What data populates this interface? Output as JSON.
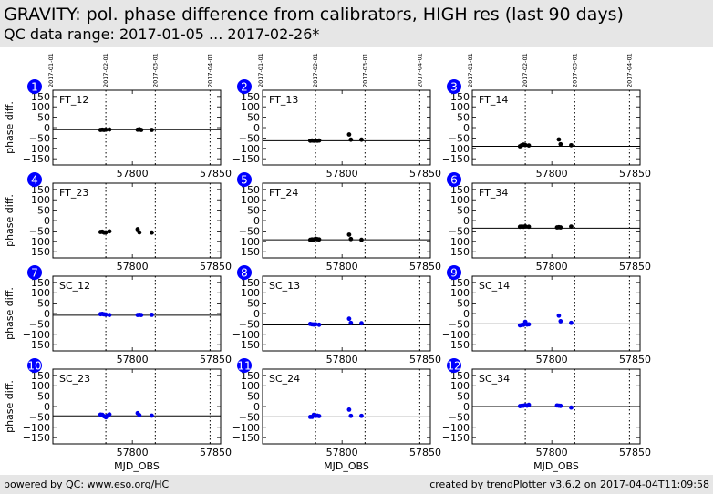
{
  "header": {
    "title": "GRAVITY: pol. phase difference from calibrators, HIGH res (last 90 days)",
    "subtitle": "QC data range: 2017-01-05 ... 2017-02-26*"
  },
  "footer": {
    "left": "powered by QC: www.eso.org/HC",
    "right": "created by trendPlotter v3.6.2 on 2017-04-04T11:09:58"
  },
  "colors": {
    "ft_points": "#000000",
    "sc_points": "#0000ee",
    "badge": "#0000ff",
    "band": "#e6e6e6"
  },
  "chart_data": {
    "type": "scatter",
    "xlabel": "MJD_OBS",
    "ylabel": "phase diff.",
    "xlim": [
      57755,
      57850
    ],
    "ylim": [
      -180,
      180
    ],
    "xticks": [
      57800,
      57850
    ],
    "yticks": [
      150,
      100,
      50,
      0,
      -50,
      -100,
      -150
    ],
    "date_markers": [
      {
        "label": "2017-01-01",
        "x": 57754
      },
      {
        "label": "2017-02-01",
        "x": 57785
      },
      {
        "label": "2017-03-01",
        "x": 57813
      },
      {
        "label": "2017-04-01",
        "x": 57844
      }
    ],
    "panels": [
      {
        "number": "1",
        "name": "FT_12",
        "ref": -10,
        "points": [
          [
            57782,
            -11
          ],
          [
            57783,
            -10
          ],
          [
            57784,
            -11
          ],
          [
            57785,
            -10
          ],
          [
            57787,
            -9
          ],
          [
            57803,
            -10
          ],
          [
            57804,
            -8
          ],
          [
            57805,
            -11
          ],
          [
            57811,
            -11
          ]
        ]
      },
      {
        "number": "2",
        "name": "FT_13",
        "ref": -63,
        "points": [
          [
            57782,
            -63
          ],
          [
            57783,
            -62
          ],
          [
            57784,
            -63
          ],
          [
            57785,
            -62
          ],
          [
            57786,
            -63
          ],
          [
            57787,
            -62
          ],
          [
            57804,
            -33
          ],
          [
            57805,
            -58
          ],
          [
            57811,
            -58
          ]
        ]
      },
      {
        "number": "3",
        "name": "FT_14",
        "ref": -90,
        "points": [
          [
            57782,
            -90
          ],
          [
            57783,
            -85
          ],
          [
            57784,
            -82
          ],
          [
            57785,
            -84
          ],
          [
            57787,
            -86
          ],
          [
            57804,
            -57
          ],
          [
            57805,
            -80
          ],
          [
            57811,
            -85
          ]
        ]
      },
      {
        "number": "4",
        "name": "FT_23",
        "ref": -55,
        "points": [
          [
            57782,
            -55
          ],
          [
            57783,
            -54
          ],
          [
            57784,
            -58
          ],
          [
            57785,
            -57
          ],
          [
            57787,
            -52
          ],
          [
            57803,
            -42
          ],
          [
            57804,
            -57
          ],
          [
            57811,
            -58
          ]
        ]
      },
      {
        "number": "5",
        "name": "FT_24",
        "ref": -93,
        "points": [
          [
            57782,
            -93
          ],
          [
            57783,
            -91
          ],
          [
            57784,
            -92
          ],
          [
            57785,
            -88
          ],
          [
            57786,
            -90
          ],
          [
            57787,
            -91
          ],
          [
            57804,
            -68
          ],
          [
            57805,
            -89
          ],
          [
            57811,
            -93
          ]
        ]
      },
      {
        "number": "6",
        "name": "FT_34",
        "ref": -37,
        "points": [
          [
            57782,
            -30
          ],
          [
            57783,
            -29
          ],
          [
            57784,
            -30
          ],
          [
            57785,
            -28
          ],
          [
            57787,
            -30
          ],
          [
            57803,
            -33
          ],
          [
            57804,
            -32
          ],
          [
            57805,
            -33
          ],
          [
            57811,
            -29
          ]
        ]
      },
      {
        "number": "7",
        "name": "SC_12",
        "ref": -8,
        "points": [
          [
            57782,
            -3
          ],
          [
            57783,
            -2
          ],
          [
            57784,
            -4
          ],
          [
            57785,
            -5
          ],
          [
            57787,
            -7
          ],
          [
            57803,
            -7
          ],
          [
            57804,
            -6
          ],
          [
            57805,
            -7
          ],
          [
            57811,
            -6
          ]
        ]
      },
      {
        "number": "8",
        "name": "SC_13",
        "ref": -55,
        "points": [
          [
            57782,
            -50
          ],
          [
            57783,
            -52
          ],
          [
            57784,
            -53
          ],
          [
            57785,
            -52
          ],
          [
            57787,
            -54
          ],
          [
            57804,
            -25
          ],
          [
            57805,
            -45
          ],
          [
            57811,
            -47
          ]
        ]
      },
      {
        "number": "9",
        "name": "SC_14",
        "ref": -50,
        "points": [
          [
            57782,
            -57
          ],
          [
            57783,
            -55
          ],
          [
            57784,
            -54
          ],
          [
            57785,
            -40
          ],
          [
            57786,
            -53
          ],
          [
            57787,
            -52
          ],
          [
            57804,
            -10
          ],
          [
            57805,
            -37
          ],
          [
            57811,
            -45
          ]
        ]
      },
      {
        "number": "10",
        "name": "SC_23",
        "ref": -45,
        "points": [
          [
            57782,
            -39
          ],
          [
            57783,
            -40
          ],
          [
            57784,
            -47
          ],
          [
            57785,
            -52
          ],
          [
            57786,
            -44
          ],
          [
            57787,
            -38
          ],
          [
            57803,
            -32
          ],
          [
            57804,
            -42
          ],
          [
            57811,
            -44
          ]
        ]
      },
      {
        "number": "11",
        "name": "SC_24",
        "ref": -50,
        "points": [
          [
            57782,
            -50
          ],
          [
            57783,
            -50
          ],
          [
            57784,
            -40
          ],
          [
            57785,
            -45
          ],
          [
            57786,
            -44
          ],
          [
            57787,
            -46
          ],
          [
            57804,
            -15
          ],
          [
            57805,
            -45
          ],
          [
            57811,
            -45
          ]
        ]
      },
      {
        "number": "12",
        "name": "SC_34",
        "ref": 0,
        "points": [
          [
            57782,
            2
          ],
          [
            57783,
            3
          ],
          [
            57784,
            4
          ],
          [
            57785,
            6
          ],
          [
            57786,
            4
          ],
          [
            57787,
            8
          ],
          [
            57803,
            5
          ],
          [
            57804,
            4
          ],
          [
            57805,
            3
          ],
          [
            57811,
            -5
          ]
        ]
      }
    ]
  }
}
